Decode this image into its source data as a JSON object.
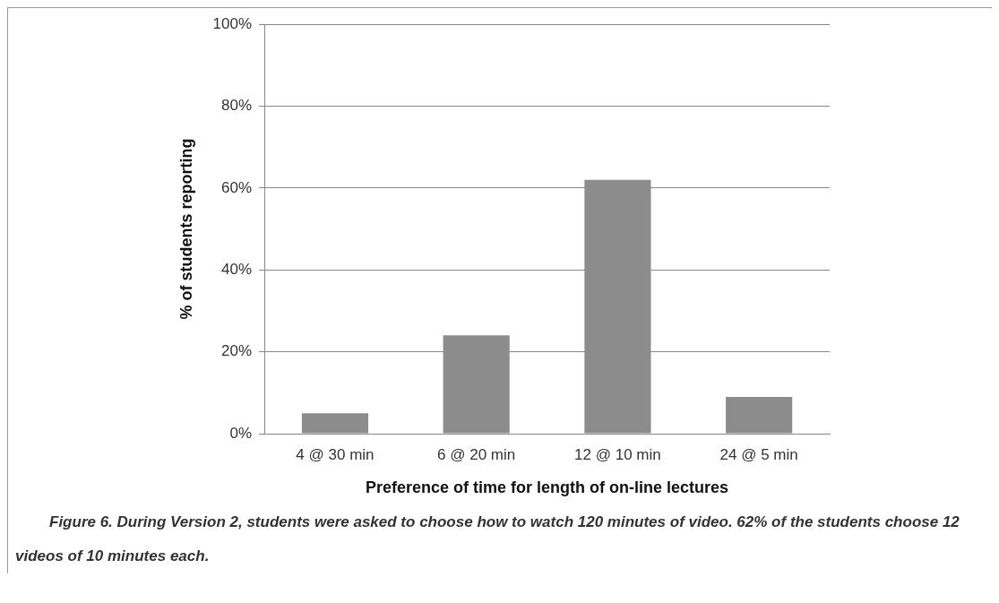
{
  "chart_data": {
    "type": "bar",
    "xlabel": "Preference of time for length of on-line lectures",
    "ylabel": "% of students reporting",
    "categories": [
      "4 @ 30 min",
      "6 @ 20 min",
      "12 @ 10 min",
      "24 @ 5 min"
    ],
    "values": [
      5,
      24,
      62,
      9
    ],
    "color": "#8c8c8c",
    "ylim": [
      0,
      100
    ],
    "yticks": [
      {
        "value": 0,
        "label": "0%"
      },
      {
        "value": 20,
        "label": "20%"
      },
      {
        "value": 40,
        "label": "40%"
      },
      {
        "value": 60,
        "label": "60%"
      },
      {
        "value": 80,
        "label": "80%"
      },
      {
        "value": 100,
        "label": "100%"
      }
    ],
    "grid": "y",
    "legend": false,
    "annotations": [
      "Figure 6.  During Version 2, students were asked to choose how to watch 120 minutes of video. 62% of the students choose 12 videos of 10 minutes each."
    ]
  }
}
